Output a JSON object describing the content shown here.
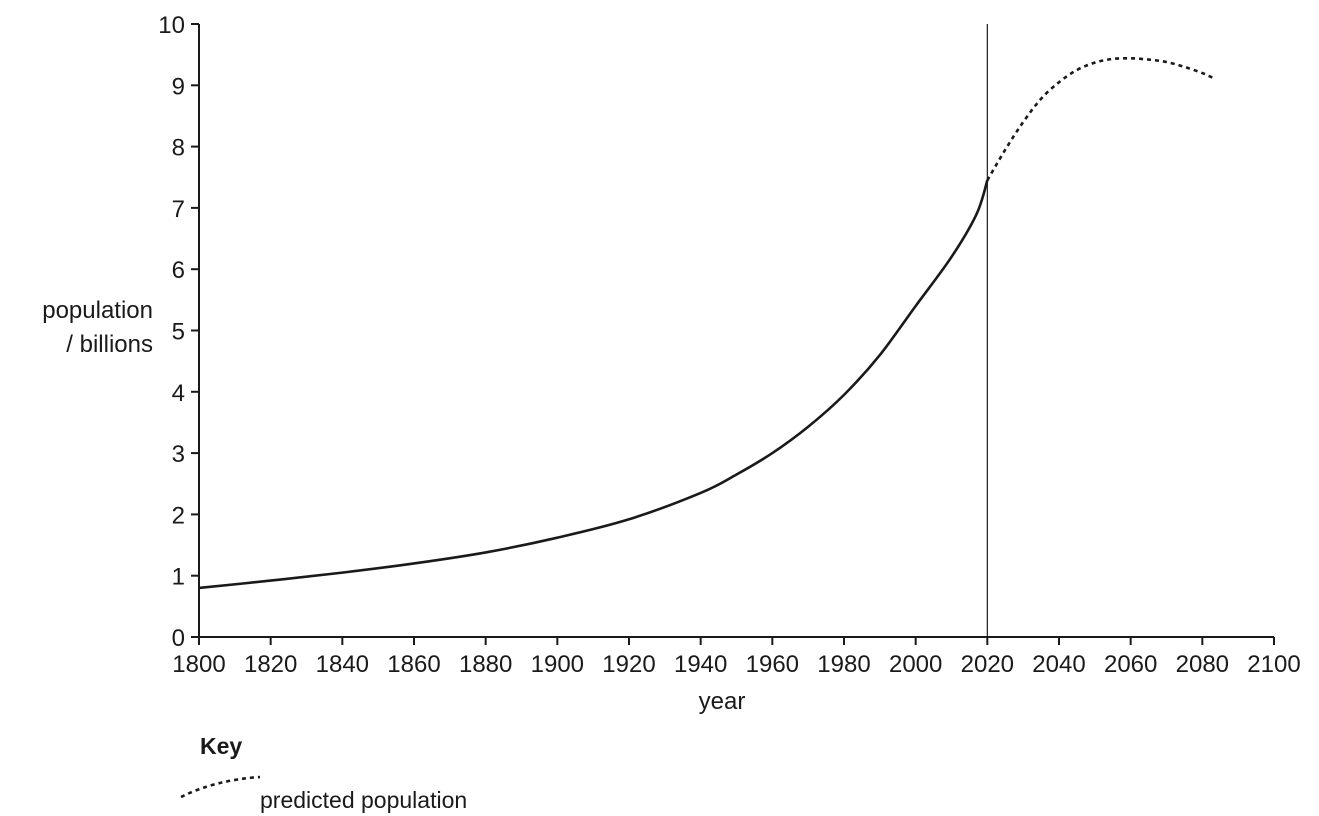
{
  "chart_data": {
    "type": "line",
    "title": "",
    "xlabel": "year",
    "ylabel_lines": [
      "population",
      "/ billions"
    ],
    "xlim": [
      1800,
      2100
    ],
    "ylim": [
      0,
      10
    ],
    "x_ticks": [
      1800,
      1820,
      1840,
      1860,
      1880,
      1900,
      1920,
      1940,
      1960,
      1980,
      2000,
      2020,
      2040,
      2060,
      2080,
      2100
    ],
    "y_ticks": [
      0,
      1,
      2,
      3,
      4,
      5,
      6,
      7,
      8,
      9,
      10
    ],
    "grid": false,
    "reference_line": {
      "x": 2020
    },
    "series": [
      {
        "style": "solid",
        "x": [
          1800,
          1820,
          1840,
          1860,
          1880,
          1900,
          1920,
          1940,
          1950,
          1960,
          1970,
          1980,
          1990,
          2000,
          2010,
          2017,
          2020
        ],
        "y": [
          0.8,
          0.92,
          1.05,
          1.2,
          1.38,
          1.62,
          1.92,
          2.35,
          2.65,
          3.0,
          3.43,
          3.95,
          4.6,
          5.4,
          6.2,
          6.9,
          7.45
        ]
      },
      {
        "name": "predicted population",
        "style": "dashed",
        "x": [
          2020,
          2025,
          2030,
          2035,
          2040,
          2045,
          2050,
          2055,
          2060,
          2065,
          2070,
          2075,
          2080,
          2083
        ],
        "y": [
          7.45,
          7.95,
          8.4,
          8.78,
          9.05,
          9.25,
          9.37,
          9.43,
          9.44,
          9.42,
          9.38,
          9.3,
          9.2,
          9.12
        ]
      }
    ],
    "legend": {
      "title": "Key",
      "position": "bottom-left",
      "entries": [
        {
          "style": "dashed",
          "label": "predicted population"
        }
      ]
    }
  }
}
